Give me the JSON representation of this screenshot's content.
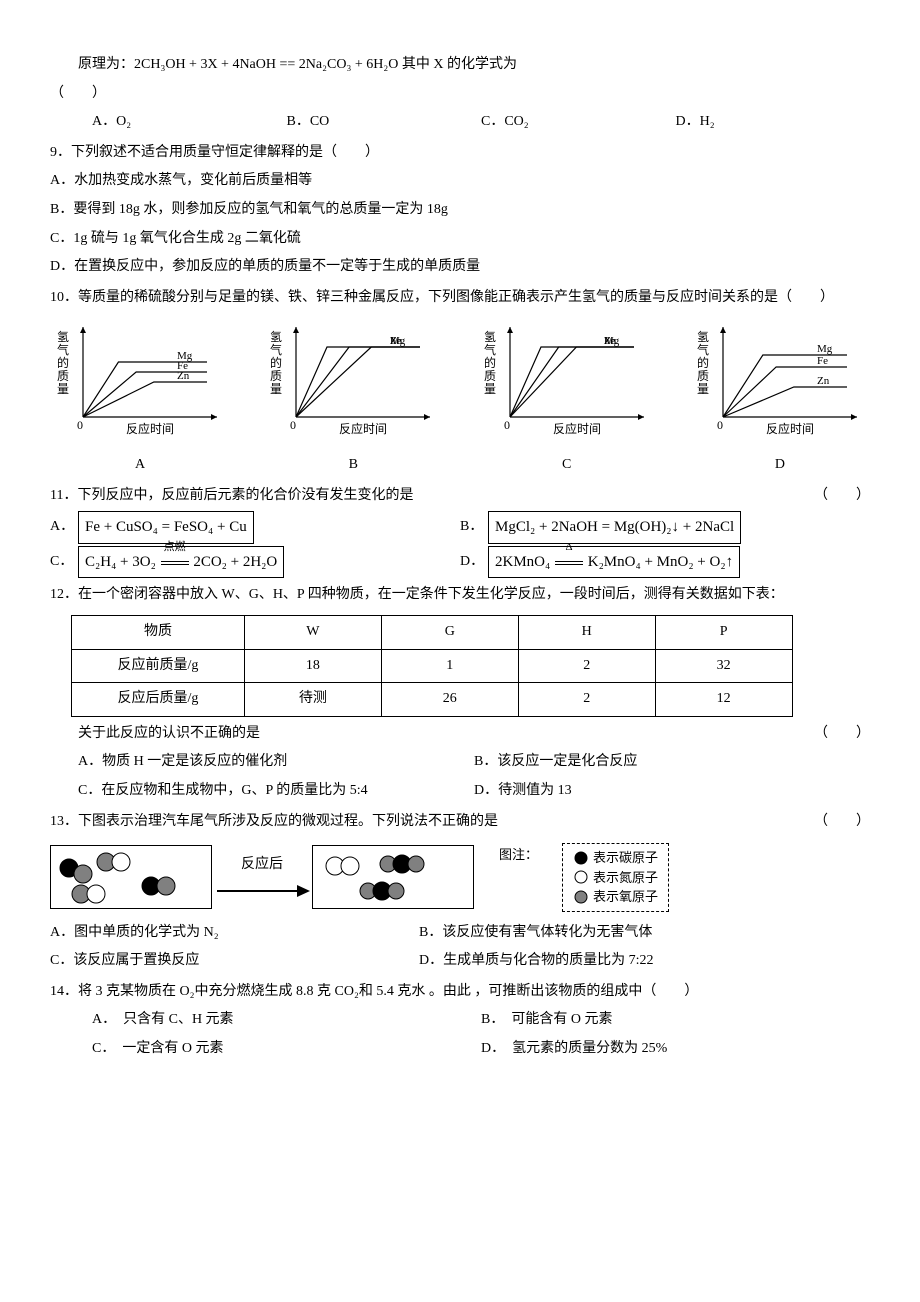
{
  "q8": {
    "stem_pre": "原理为：",
    "equation": "2CH₃OH + 3X + 4NaOH == 2Na₂CO₃ + 6H₂O",
    "stem_post": " 其中 X 的化学式为",
    "paren": "（　　）",
    "opts": {
      "A": "A．O₂",
      "B": "B．CO",
      "C": "C．CO₂",
      "D": "D．H₂"
    }
  },
  "q9": {
    "num": "9．",
    "stem": "下列叙述不适合用质量守恒定律解释的是（　　）",
    "A": "A．水加热变成水蒸气，变化前后质量相等",
    "B": "B．要得到 18g 水，则参加反应的氢气和氧气的总质量一定为 18g",
    "C": "C．1g 硫与 1g 氧气化合生成 2g 二氧化硫",
    "D": "D．在置换反应中，参加反应的单质的质量不一定等于生成的单质质量"
  },
  "q10": {
    "num": "10．",
    "stem": "等质量的稀硫酸分别与足量的镁、铁、锌三种金属反应，下列图像能正确表示产生氢气的质量与反应时间关系的是（　　）",
    "ylabel": "氢气的质量",
    "xlabel": "反应时间",
    "labels": [
      "A",
      "B",
      "C",
      "D"
    ],
    "series": [
      "Mg",
      "Fe",
      "Zn"
    ],
    "chart": {
      "axis_color": "#000000",
      "line_color": "#000000",
      "width": 170,
      "height": 120,
      "A": {
        "Mg": [
          [
            0,
            0
          ],
          [
            40,
            55
          ],
          [
            140,
            55
          ]
        ],
        "Fe": [
          [
            0,
            0
          ],
          [
            60,
            45
          ],
          [
            140,
            45
          ]
        ],
        "Zn": [
          [
            0,
            0
          ],
          [
            80,
            35
          ],
          [
            140,
            35
          ]
        ]
      },
      "B": {
        "Mg": [
          [
            0,
            0
          ],
          [
            35,
            70
          ],
          [
            140,
            70
          ]
        ],
        "Fe": [
          [
            0,
            0
          ],
          [
            85,
            70
          ],
          [
            140,
            70
          ]
        ],
        "Zn": [
          [
            0,
            0
          ],
          [
            60,
            70
          ],
          [
            140,
            70
          ]
        ]
      },
      "C": {
        "Mg": [
          [
            0,
            0
          ],
          [
            35,
            70
          ],
          [
            140,
            70
          ]
        ],
        "Fe": [
          [
            0,
            0
          ],
          [
            55,
            70
          ],
          [
            140,
            70
          ]
        ],
        "Zn": [
          [
            0,
            0
          ],
          [
            75,
            70
          ],
          [
            140,
            70
          ]
        ]
      },
      "D": {
        "Mg": [
          [
            0,
            0
          ],
          [
            45,
            62
          ],
          [
            140,
            62
          ]
        ],
        "Fe": [
          [
            0,
            0
          ],
          [
            60,
            50
          ],
          [
            140,
            50
          ]
        ],
        "Zn": [
          [
            0,
            0
          ],
          [
            80,
            30
          ],
          [
            140,
            30
          ]
        ]
      }
    }
  },
  "q11": {
    "num": "11．",
    "stem": "下列反应中，反应前后元素的化合价没有发生变化的是",
    "paren": "（　　）",
    "A_label": "A．",
    "A_eq": "Fe + CuSO₄ = FeSO₄ + Cu",
    "B_label": "B．",
    "B_eq": "MgCl₂ + 2NaOH = Mg(OH)₂↓ + 2NaCl",
    "C_label": "C．",
    "C_eq_l": "C₂H₄ + 3O₂",
    "C_cond": "点燃",
    "C_eq_r": "2CO₂ + 2H₂O",
    "D_label": "D．",
    "D_eq_l": "2KMnO₄",
    "D_cond": "Δ",
    "D_eq_r": "K₂MnO₄ + MnO₂ + O₂↑"
  },
  "q12": {
    "num": "12．",
    "stem": "在一个密闭容器中放入 W、G、H、P 四种物质，在一定条件下发生化学反应，一段时间后，测得有关数据如下表：",
    "table": {
      "headers": [
        "物质",
        "W",
        "G",
        "H",
        "P"
      ],
      "rows": [
        [
          "反应前质量/g",
          "18",
          "1",
          "2",
          "32"
        ],
        [
          "反应后质量/g",
          "待测",
          "26",
          "2",
          "12"
        ]
      ]
    },
    "sub_stem": "关于此反应的认识不正确的是",
    "paren": "（　　）",
    "A": "A．物质 H 一定是该反应的催化剂",
    "B": "B．该反应一定是化合反应",
    "C": "C．在反应物和生成物中，G、P 的质量比为 5:4",
    "D": "D．待测值为 13"
  },
  "q13": {
    "num": "13．",
    "stem": "下图表示治理汽车尾气所涉及反应的微观过程。下列说法不正确的是",
    "paren": "（　　）",
    "arrow_label": "反应后",
    "legend_title": "图注：",
    "legend": [
      {
        "name": "carbon",
        "text": "表示碳原子",
        "fill": "#000000"
      },
      {
        "name": "nitrogen",
        "text": "表示氮原子",
        "fill": "#ffffff"
      },
      {
        "name": "oxygen",
        "text": "表示氧原子",
        "fill": "#808080"
      }
    ],
    "A": "A．图中单质的化学式为 N₂",
    "B": "B．该反应使有害气体转化为无害气体",
    "C": "C．该反应属于置换反应",
    "D": "D．生成单质与化合物的质量比为 7:22"
  },
  "q14": {
    "num": "14．",
    "stem": "将 3 克某物质在 O₂中充分燃烧生成 8.8 克 CO₂和 5.4 克水 。由此 ，可推断出该物质的组成中（　　）",
    "A": "A．　只含有 C、H 元素",
    "B": "B．　可能含有 O 元素",
    "C": "C．　一定含有 O 元素",
    "D": "D．　氢元素的质量分数为 25%"
  }
}
